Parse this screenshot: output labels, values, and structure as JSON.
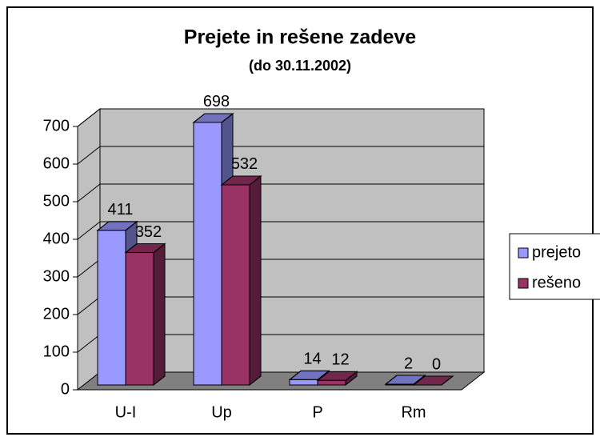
{
  "chart_data": {
    "type": "bar3d",
    "title": "Prejete in rešene zadeve",
    "subtitle": "(do 30.11.2002)",
    "categories": [
      "U-I",
      "Up",
      "P",
      "Rm"
    ],
    "series": [
      {
        "name": "prejeto",
        "color": "#9999ff",
        "values": [
          411,
          698,
          14,
          2
        ]
      },
      {
        "name": "rešeno",
        "color": "#993366",
        "values": [
          352,
          532,
          12,
          0
        ]
      }
    ],
    "ylim": [
      0,
      700
    ],
    "yticks": [
      0,
      100,
      200,
      300,
      400,
      500,
      600,
      700
    ],
    "grid": true,
    "legend": "right"
  }
}
